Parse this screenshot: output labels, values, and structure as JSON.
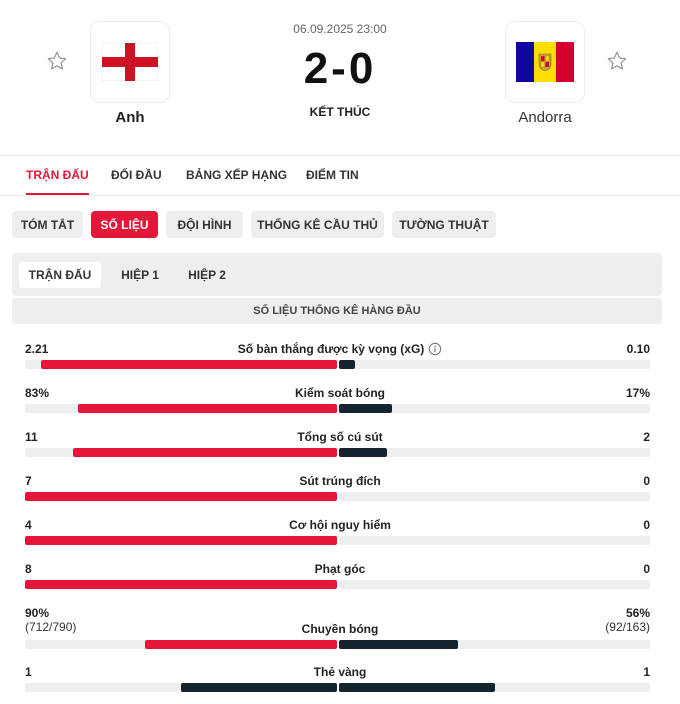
{
  "match": {
    "date": "06.09.2025 23:00",
    "score": "2-0",
    "status": "KẾT THÚC",
    "home_team": "Anh",
    "away_team": "Andorra"
  },
  "icons": {
    "favorite": "star-outline-icon",
    "home_flag": "england-flag-icon",
    "away_flag": "andorra-flag-icon",
    "info": "info-circle-icon"
  },
  "colors": {
    "accent": "#e4173b",
    "away_bar": "#14252f",
    "track": "#eeeeee"
  },
  "main_tabs": [
    {
      "label": "TRẬN ĐẤU",
      "active": true
    },
    {
      "label": "ĐỐI ĐẦU",
      "active": false
    },
    {
      "label": "BẢNG XẾP HẠNG",
      "active": false
    },
    {
      "label": "ĐIỂM TIN",
      "active": false
    }
  ],
  "sub_tabs": [
    {
      "label": "TÓM TẮT",
      "active": false
    },
    {
      "label": "SỐ LIỆU",
      "active": true
    },
    {
      "label": "ĐỘI HÌNH",
      "active": false
    },
    {
      "label": "THỐNG KÊ CẦU THỦ",
      "active": false
    },
    {
      "label": "TƯỜNG THUẬT",
      "active": false
    }
  ],
  "period_tabs": [
    {
      "label": "TRẬN ĐẤU",
      "active": true
    },
    {
      "label": "HIỆP 1",
      "active": false
    },
    {
      "label": "HIỆP 2",
      "active": false
    }
  ],
  "section_title": "SỐ LIỆU THỐNG KÊ HÀNG ĐẦU",
  "stats": [
    {
      "label": "Số bàn thắng được kỳ vọng (xG)",
      "home": "2.21",
      "away": "0.10",
      "home_share": 0.95,
      "away_share": 0.05,
      "info": true
    },
    {
      "label": "Kiểm soát bóng",
      "home": "83%",
      "away": "17%",
      "home_share": 0.83,
      "away_share": 0.17
    },
    {
      "label": "Tổng số cú sút",
      "home": "11",
      "away": "2",
      "home_share": 0.846,
      "away_share": 0.154
    },
    {
      "label": "Sút trúng đích",
      "home": "7",
      "away": "0",
      "home_share": 1.0,
      "away_share": 0.0
    },
    {
      "label": "Cơ hội nguy hiểm",
      "home": "4",
      "away": "0",
      "home_share": 1.0,
      "away_share": 0.0
    },
    {
      "label": "Phạt góc",
      "home": "8",
      "away": "0",
      "home_share": 1.0,
      "away_share": 0.0
    },
    {
      "label": "Chuyền bóng",
      "home": "90%",
      "away": "56%",
      "home_sub": "(712/790)",
      "away_sub": "(92/163)",
      "home_share": 0.616,
      "away_share": 0.384
    },
    {
      "label": "Thẻ vàng",
      "home": "1",
      "away": "1",
      "home_share": 0.5,
      "away_share": 0.5,
      "dark": true
    }
  ]
}
